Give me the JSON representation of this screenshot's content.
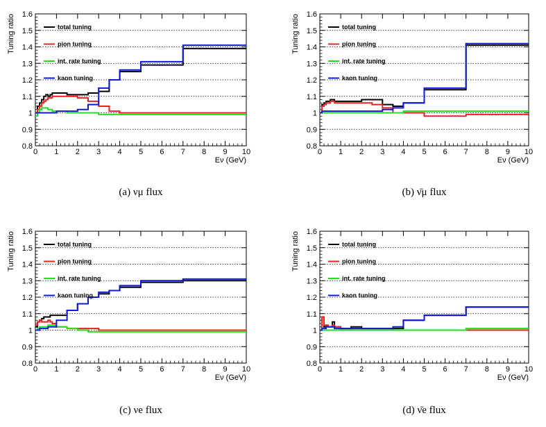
{
  "chart_data": [
    {
      "type": "line",
      "caption": "(a) νμ flux",
      "xlabel": "Eν (GeV)",
      "ylabel": "Tuning ratio",
      "xlim": [
        0,
        10
      ],
      "ylim": [
        0.8,
        1.6
      ],
      "xticks": [
        "0",
        "1",
        "2",
        "3",
        "4",
        "5",
        "6",
        "7",
        "8",
        "9",
        "10"
      ],
      "yticks": [
        "0.8",
        "0.9",
        "1",
        "1.1",
        "1.2",
        "1.3",
        "1.4",
        "1.5",
        "1.6"
      ],
      "grid": true,
      "series": [
        {
          "name": "total tuning",
          "color": "#000000",
          "x": [
            0,
            0.1,
            0.2,
            0.3,
            0.4,
            0.5,
            0.6,
            0.7,
            0.8,
            1,
            1.5,
            2,
            2.5,
            3,
            3.5,
            4,
            5,
            7,
            10
          ],
          "y": [
            1.0,
            1.04,
            1.06,
            1.08,
            1.1,
            1.11,
            1.1,
            1.11,
            1.12,
            1.12,
            1.11,
            1.11,
            1.12,
            1.13,
            1.2,
            1.25,
            1.29,
            1.39,
            1.39
          ]
        },
        {
          "name": "pion tuning",
          "color": "#e8231f",
          "x": [
            0,
            0.1,
            0.2,
            0.3,
            0.4,
            0.5,
            0.6,
            0.7,
            0.8,
            1,
            1.5,
            2,
            2.5,
            3,
            3.5,
            4,
            5,
            7,
            10
          ],
          "y": [
            1.0,
            1.02,
            1.04,
            1.06,
            1.07,
            1.08,
            1.09,
            1.09,
            1.1,
            1.1,
            1.1,
            1.09,
            1.07,
            1.04,
            1.01,
            1.0,
            1.0,
            1.0,
            1.0
          ]
        },
        {
          "name": "int. rate tuning",
          "color": "#22dd22",
          "x": [
            0,
            0.1,
            0.2,
            0.3,
            0.4,
            0.5,
            0.6,
            0.7,
            0.8,
            1,
            1.5,
            2,
            2.5,
            3,
            3.5,
            4,
            5,
            7,
            10
          ],
          "y": [
            0.98,
            1.0,
            1.02,
            1.03,
            1.03,
            1.03,
            1.02,
            1.02,
            1.01,
            1.01,
            1.0,
            1.0,
            1.0,
            0.99,
            0.99,
            0.99,
            0.99,
            0.99,
            0.99
          ]
        },
        {
          "name": "kaon tuning",
          "color": "#1018d8",
          "x": [
            0,
            0.1,
            0.2,
            0.3,
            0.4,
            0.5,
            0.6,
            0.7,
            0.8,
            1,
            1.5,
            2,
            2.5,
            3,
            3.5,
            4,
            5,
            7,
            10
          ],
          "y": [
            1.0,
            1.0,
            1.0,
            1.0,
            1.0,
            1.0,
            1.0,
            1.0,
            1.0,
            1.01,
            1.01,
            1.02,
            1.05,
            1.15,
            1.2,
            1.26,
            1.31,
            1.41,
            1.41
          ]
        }
      ]
    },
    {
      "type": "line",
      "caption": "(b) ν̄μ flux",
      "xlabel": "Eν (GeV)",
      "ylabel": "Tuning ratio",
      "xlim": [
        0,
        10
      ],
      "ylim": [
        0.8,
        1.6
      ],
      "xticks": [
        "0",
        "1",
        "2",
        "3",
        "4",
        "5",
        "6",
        "7",
        "8",
        "9",
        "10"
      ],
      "yticks": [
        "0.8",
        "0.9",
        "1",
        "1.1",
        "1.2",
        "1.3",
        "1.4",
        "1.5",
        "1.6"
      ],
      "grid": true,
      "series": [
        {
          "name": "total tuning",
          "color": "#000000",
          "x": [
            0,
            0.1,
            0.2,
            0.3,
            0.4,
            0.5,
            0.6,
            0.7,
            0.8,
            1,
            1.5,
            2,
            2.5,
            3,
            3.5,
            4,
            5,
            7,
            10
          ],
          "y": [
            1.0,
            1.05,
            1.06,
            1.07,
            1.07,
            1.08,
            1.08,
            1.07,
            1.07,
            1.07,
            1.07,
            1.08,
            1.08,
            1.05,
            1.04,
            1.06,
            1.14,
            1.41,
            1.41
          ]
        },
        {
          "name": "pion tuning",
          "color": "#e8231f",
          "x": [
            0,
            0.1,
            0.2,
            0.3,
            0.4,
            0.5,
            0.6,
            0.7,
            0.8,
            1,
            1.5,
            2,
            2.5,
            3,
            3.5,
            4,
            5,
            7,
            10
          ],
          "y": [
            1.0,
            1.04,
            1.05,
            1.06,
            1.06,
            1.07,
            1.07,
            1.06,
            1.06,
            1.06,
            1.06,
            1.06,
            1.05,
            1.03,
            1.0,
            1.0,
            0.98,
            0.99,
            0.99
          ]
        },
        {
          "name": "int. rate tuning",
          "color": "#22dd22",
          "x": [
            0,
            0.1,
            0.2,
            0.3,
            0.4,
            0.5,
            0.6,
            0.7,
            0.8,
            1,
            1.5,
            2,
            2.5,
            3,
            3.5,
            4,
            5,
            7,
            10
          ],
          "y": [
            1.0,
            1.0,
            1.0,
            1.0,
            1.0,
            1.0,
            1.0,
            1.0,
            1.0,
            1.0,
            1.0,
            1.0,
            1.0,
            1.0,
            1.0,
            1.01,
            1.01,
            1.01,
            1.01
          ]
        },
        {
          "name": "kaon tuning",
          "color": "#1018d8",
          "x": [
            0,
            0.1,
            0.2,
            0.3,
            0.4,
            0.5,
            0.6,
            0.7,
            0.8,
            1,
            1.5,
            2,
            2.5,
            3,
            3.5,
            4,
            5,
            7,
            10
          ],
          "y": [
            1.0,
            1.01,
            1.01,
            1.01,
            1.01,
            1.01,
            1.01,
            1.01,
            1.01,
            1.01,
            1.01,
            1.01,
            1.01,
            1.02,
            1.03,
            1.06,
            1.15,
            1.42,
            1.42
          ]
        }
      ]
    },
    {
      "type": "line",
      "caption": "(c) νe flux",
      "xlabel": "Eν (GeV)",
      "ylabel": "Tuning ratio",
      "xlim": [
        0,
        10
      ],
      "ylim": [
        0.8,
        1.6
      ],
      "xticks": [
        "0",
        "1",
        "2",
        "3",
        "4",
        "5",
        "6",
        "7",
        "8",
        "9",
        "10"
      ],
      "yticks": [
        "0.8",
        "0.9",
        "1",
        "1.1",
        "1.2",
        "1.3",
        "1.4",
        "1.5",
        "1.6"
      ],
      "grid": true,
      "series": [
        {
          "name": "total tuning",
          "color": "#000000",
          "x": [
            0,
            0.1,
            0.2,
            0.3,
            0.4,
            0.5,
            0.6,
            0.7,
            0.8,
            1,
            1.5,
            2,
            2.5,
            3,
            3.5,
            4,
            5,
            7,
            10
          ],
          "y": [
            1.02,
            1.05,
            1.06,
            1.07,
            1.08,
            1.08,
            1.08,
            1.09,
            1.09,
            1.09,
            1.12,
            1.16,
            1.2,
            1.22,
            1.24,
            1.26,
            1.29,
            1.3,
            1.3
          ]
        },
        {
          "name": "pion tuning",
          "color": "#e8231f",
          "x": [
            0,
            0.1,
            0.2,
            0.3,
            0.4,
            0.5,
            0.6,
            0.7,
            0.8,
            1,
            1.5,
            2,
            2.5,
            3,
            3.5,
            4,
            5,
            7,
            10
          ],
          "y": [
            1.03,
            1.05,
            1.06,
            1.05,
            1.05,
            1.05,
            1.06,
            1.05,
            1.04,
            1.02,
            1.01,
            1.01,
            1.01,
            1.0,
            1.0,
            1.0,
            1.0,
            1.0,
            1.0
          ]
        },
        {
          "name": "int. rate tuning",
          "color": "#22dd22",
          "x": [
            0,
            0.1,
            0.2,
            0.3,
            0.4,
            0.5,
            0.6,
            0.7,
            0.8,
            1,
            1.5,
            2,
            2.5,
            3,
            3.5,
            4,
            5,
            7,
            10
          ],
          "y": [
            1.0,
            1.01,
            1.02,
            1.02,
            1.02,
            1.02,
            1.03,
            1.03,
            1.03,
            1.02,
            1.01,
            1.0,
            0.99,
            0.99,
            0.99,
            0.99,
            0.99,
            0.99,
            0.99
          ]
        },
        {
          "name": "kaon tuning",
          "color": "#1018d8",
          "x": [
            0,
            0.1,
            0.2,
            0.3,
            0.4,
            0.5,
            0.6,
            0.7,
            0.8,
            1,
            1.5,
            2,
            2.5,
            3,
            3.5,
            4,
            5,
            7,
            10
          ],
          "y": [
            1.0,
            1.0,
            1.01,
            1.01,
            1.01,
            1.01,
            1.02,
            1.02,
            1.02,
            1.06,
            1.12,
            1.16,
            1.2,
            1.23,
            1.24,
            1.27,
            1.3,
            1.31,
            1.31
          ]
        }
      ]
    },
    {
      "type": "line",
      "caption": "(d) ν̄e flux",
      "xlabel": "Eν (GeV)",
      "ylabel": "Tuning ratio",
      "xlim": [
        0,
        10
      ],
      "ylim": [
        0.8,
        1.6
      ],
      "xticks": [
        "0",
        "1",
        "2",
        "3",
        "4",
        "5",
        "6",
        "7",
        "8",
        "9",
        "10"
      ],
      "yticks": [
        "0.8",
        "0.9",
        "1",
        "1.1",
        "1.2",
        "1.3",
        "1.4",
        "1.5",
        "1.6"
      ],
      "grid": true,
      "series": [
        {
          "name": "total tuning",
          "color": "#000000",
          "x": [
            0,
            0.1,
            0.2,
            0.3,
            0.4,
            0.5,
            0.6,
            0.7,
            0.8,
            1,
            1.5,
            2,
            2.5,
            3,
            3.5,
            4,
            5,
            7,
            10
          ],
          "y": [
            1.0,
            1.08,
            1.02,
            1.03,
            1.02,
            1.02,
            1.05,
            1.02,
            1.02,
            1.01,
            1.02,
            1.01,
            1.01,
            1.01,
            1.01,
            1.06,
            1.09,
            1.14,
            1.14
          ]
        },
        {
          "name": "pion tuning",
          "color": "#e8231f",
          "x": [
            0,
            0.1,
            0.2,
            0.3,
            0.4,
            0.5,
            0.6,
            0.7,
            0.8,
            1,
            1.5,
            2,
            2.5,
            3,
            3.5,
            4,
            5,
            7,
            10
          ],
          "y": [
            1.0,
            1.08,
            1.03,
            1.03,
            1.02,
            1.02,
            1.03,
            1.02,
            1.02,
            1.01,
            1.01,
            1.01,
            1.01,
            1.01,
            1.0,
            1.0,
            1.0,
            1.0,
            1.0
          ]
        },
        {
          "name": "int. rate tuning",
          "color": "#22dd22",
          "x": [
            0,
            0.1,
            0.2,
            0.3,
            0.4,
            0.5,
            0.6,
            0.7,
            0.8,
            1,
            1.5,
            2,
            2.5,
            3,
            3.5,
            4,
            5,
            7,
            10
          ],
          "y": [
            1.0,
            1.0,
            1.0,
            1.0,
            1.0,
            1.0,
            1.0,
            1.0,
            1.0,
            1.0,
            1.0,
            1.0,
            1.0,
            1.0,
            1.0,
            1.0,
            1.0,
            1.01,
            1.01
          ]
        },
        {
          "name": "kaon tuning",
          "color": "#1018d8",
          "x": [
            0,
            0.1,
            0.2,
            0.3,
            0.4,
            0.5,
            0.6,
            0.7,
            0.8,
            1,
            1.5,
            2,
            2.5,
            3,
            3.5,
            4,
            5,
            7,
            10
          ],
          "y": [
            1.0,
            1.01,
            1.01,
            1.02,
            1.02,
            1.02,
            1.02,
            1.01,
            1.01,
            1.01,
            1.01,
            1.01,
            1.01,
            1.01,
            1.02,
            1.06,
            1.09,
            1.14,
            1.14
          ]
        }
      ]
    }
  ]
}
